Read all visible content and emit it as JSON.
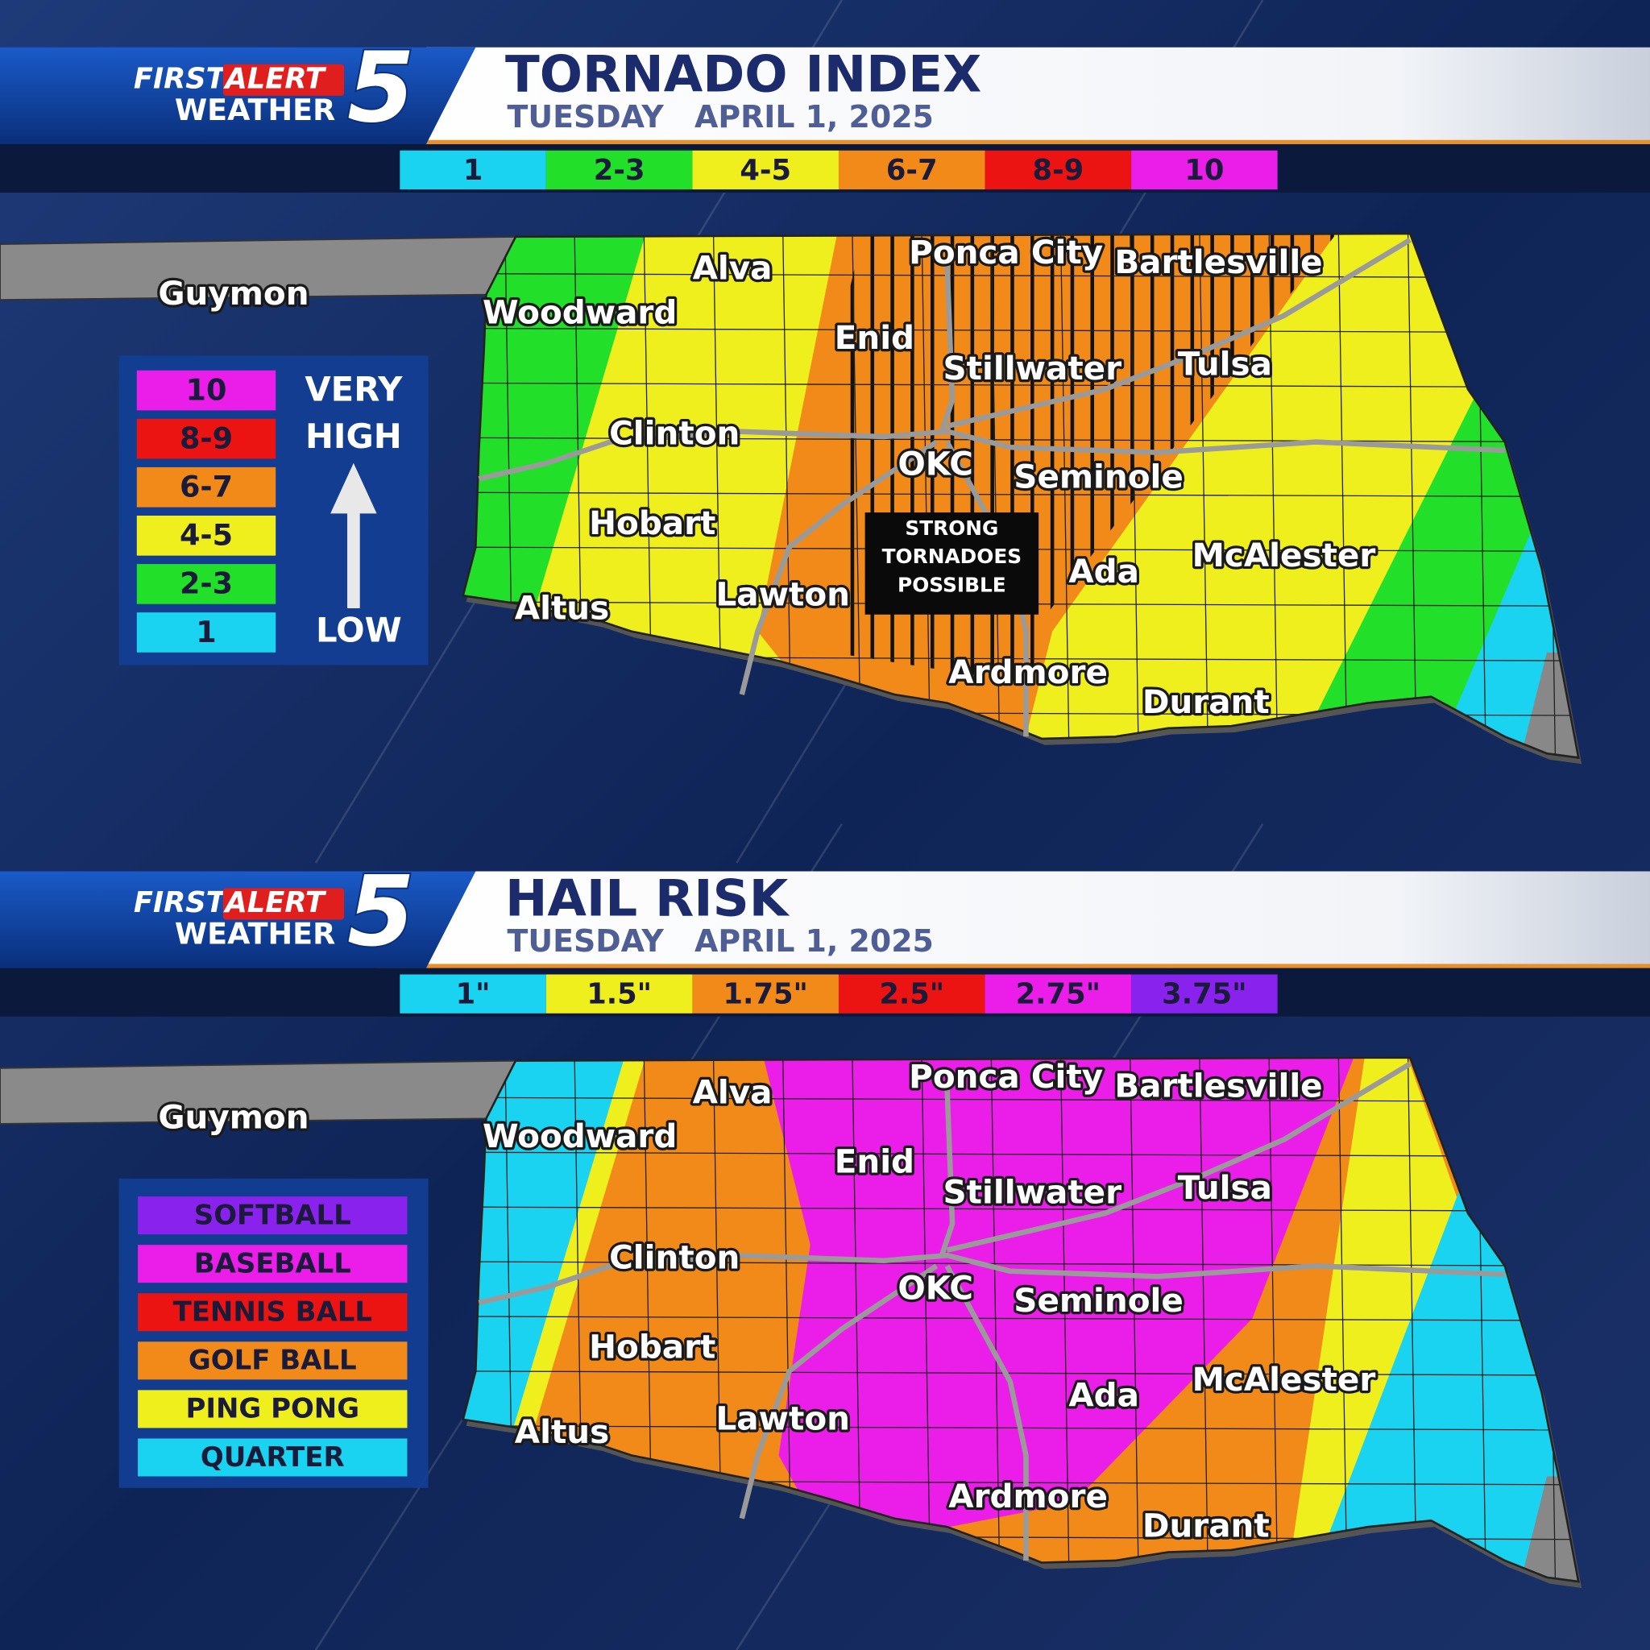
{
  "logo": {
    "first": "FIRST",
    "alert": "ALERT",
    "weather": "WEATHER",
    "number": "5"
  },
  "cities": [
    "Guymon",
    "Alva",
    "Woodward",
    "Ponca City",
    "Bartlesville",
    "Enid",
    "Stillwater",
    "Tulsa",
    "Clinton",
    "OKC",
    "Seminole",
    "Hobart",
    "McAlester",
    "Ada",
    "Lawton",
    "Altus",
    "Ardmore",
    "Durant"
  ],
  "panels": [
    {
      "title": "TORNADO INDEX",
      "weekday": "TUESDAY",
      "date": "APRIL 1, 2025",
      "scale": [
        {
          "label": "1",
          "color": "#19d3f0"
        },
        {
          "label": "2-3",
          "color": "#22e02a"
        },
        {
          "label": "4-5",
          "color": "#f0ef1e"
        },
        {
          "label": "6-7",
          "color": "#f28a1a"
        },
        {
          "label": "8-9",
          "color": "#ec1313"
        },
        {
          "label": "10",
          "color": "#ea1ee8"
        }
      ],
      "legend": {
        "items": [
          {
            "label": "10",
            "color": "#ea1ee8"
          },
          {
            "label": "8-9",
            "color": "#ec1313"
          },
          {
            "label": "6-7",
            "color": "#f28a1a"
          },
          {
            "label": "4-5",
            "color": "#f0ef1e"
          },
          {
            "label": "2-3",
            "color": "#22e02a"
          },
          {
            "label": "1",
            "color": "#19d3f0"
          }
        ],
        "high": [
          "VERY",
          "HIGH"
        ],
        "low": "LOW"
      },
      "callout": [
        "STRONG",
        "TORNADOES",
        "POSSIBLE"
      ]
    },
    {
      "title": "HAIL RISK",
      "weekday": "TUESDAY",
      "date": "APRIL 1, 2025",
      "scale": [
        {
          "label": "1\"",
          "color": "#19d3f0"
        },
        {
          "label": "1.5\"",
          "color": "#f0ef1e"
        },
        {
          "label": "1.75\"",
          "color": "#f28a1a"
        },
        {
          "label": "2.5\"",
          "color": "#ec1313"
        },
        {
          "label": "2.75\"",
          "color": "#ea1ee8"
        },
        {
          "label": "3.75\"",
          "color": "#8a22ee"
        }
      ],
      "legend": {
        "items": [
          {
            "label": "SOFTBALL",
            "color": "#8a22ee"
          },
          {
            "label": "BASEBALL",
            "color": "#ea1ee8"
          },
          {
            "label": "TENNIS BALL",
            "color": "#ec1313"
          },
          {
            "label": "GOLF BALL",
            "color": "#f28a1a"
          },
          {
            "label": "PING PONG",
            "color": "#f0ef1e"
          },
          {
            "label": "QUARTER",
            "color": "#19d3f0"
          }
        ]
      }
    }
  ]
}
